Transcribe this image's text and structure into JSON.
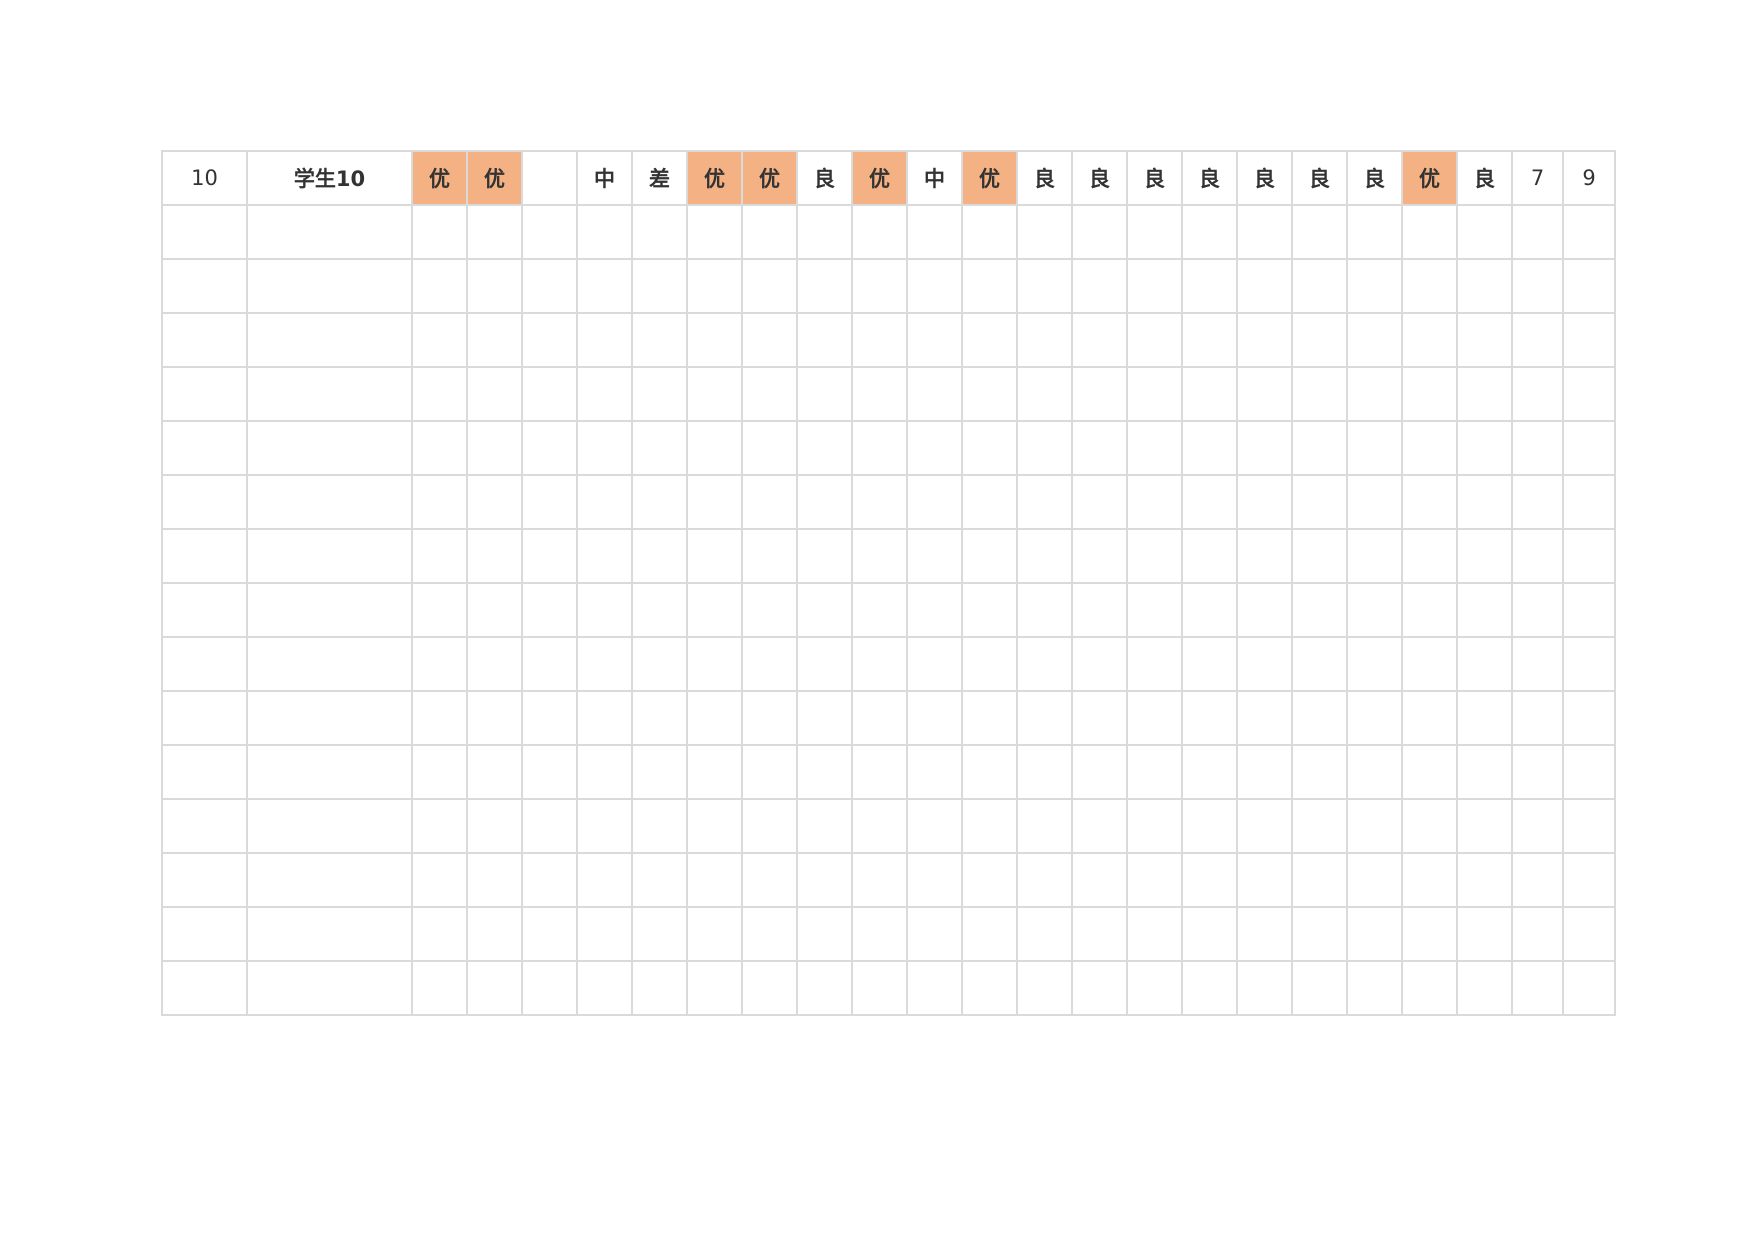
{
  "table": {
    "rows": [
      [
        "10",
        "学生10",
        {
          "text": "优",
          "fill": "#f4b183"
        },
        {
          "text": "优",
          "fill": "#f4b183"
        },
        null,
        "中",
        "差",
        {
          "text": "优",
          "fill": "#f4b183"
        },
        {
          "text": "优",
          "fill": "#f4b183"
        },
        "良",
        {
          "text": "优",
          "fill": "#f4b183"
        },
        "中",
        {
          "text": "优",
          "fill": "#f4b183"
        },
        "良",
        "良",
        "良",
        "良",
        "良",
        "良",
        "良",
        {
          "text": "优",
          "fill": "#f4b183"
        },
        "良",
        "7",
        "9"
      ]
    ]
  }
}
